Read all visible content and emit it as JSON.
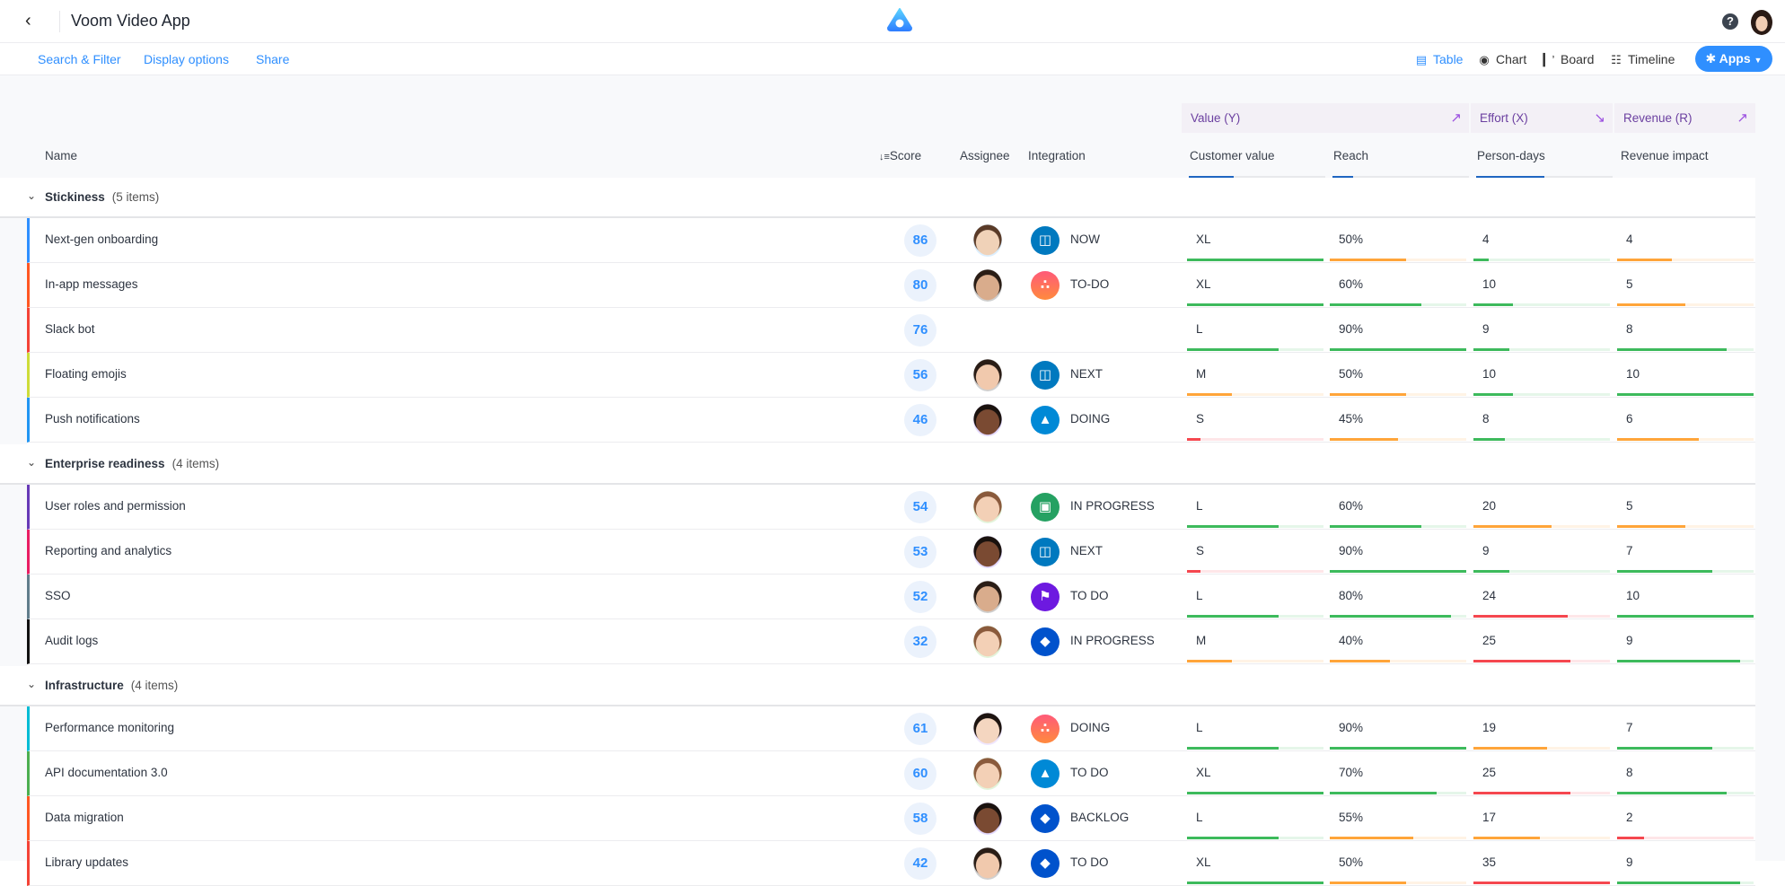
{
  "app": {
    "title": "Voom Video App",
    "back_icon": "chevron-left-icon",
    "logo_icon": "app-logo-icon",
    "help_icon": "help-icon",
    "user_avatar": "user-avatar"
  },
  "toolbar": {
    "links": [
      "Search & Filter",
      "Display options",
      "Share"
    ],
    "views": [
      {
        "label": "Table",
        "icon": "table-icon",
        "active": true
      },
      {
        "label": "Chart",
        "icon": "chart-icon"
      },
      {
        "label": "Board",
        "icon": "board-icon"
      },
      {
        "label": "Timeline",
        "icon": "timeline-icon"
      }
    ],
    "apps_label": "Apps",
    "accent": "#2f8fff"
  },
  "columns": {
    "name": "Name",
    "score": "Score",
    "assignee": "Assignee",
    "integration": "Integration",
    "groups": [
      {
        "label": "Value (Y)",
        "trend": "trending-up-icon"
      },
      {
        "label": "Effort (X)",
        "trend": "trending-down-icon"
      },
      {
        "label": "Revenue (R)",
        "trend": "trending-up-icon"
      }
    ],
    "metrics": [
      {
        "label": "Customer value",
        "weight": 0.33
      },
      {
        "label": "Reach",
        "weight": 0.15
      },
      {
        "label": "Person-days",
        "weight": 0.5
      },
      {
        "label": "Revenue impact"
      }
    ]
  },
  "colors": {
    "green": "#3dba5c",
    "orange": "#ffa53a",
    "red": "#f5474f"
  },
  "groups": [
    {
      "name": "Stickiness",
      "count": "(5 items)",
      "rows": [
        {
          "name": "Next-gen onboarding",
          "color": "#2f8fff",
          "score": "86",
          "assignee": "man-1",
          "integration": "trello",
          "status": "NOW",
          "m": [
            [
              "XL",
              1,
              "green"
            ],
            [
              "50%",
              0.56,
              "orange"
            ],
            [
              "4",
              0.11,
              "green"
            ],
            [
              "4",
              0.4,
              "orange"
            ]
          ]
        },
        {
          "name": "In-app messages",
          "color": "#ff5722",
          "score": "80",
          "assignee": "man-2",
          "integration": "asana",
          "status": "TO-DO",
          "m": [
            [
              "XL",
              1,
              "green"
            ],
            [
              "60%",
              0.67,
              "green"
            ],
            [
              "10",
              0.29,
              "green"
            ],
            [
              "5",
              0.5,
              "orange"
            ]
          ]
        },
        {
          "name": "Slack bot",
          "color": "#f44336",
          "score": "76",
          "assignee": null,
          "integration": null,
          "status": "",
          "m": [
            [
              "L",
              0.67,
              "green"
            ],
            [
              "90%",
              1,
              "green"
            ],
            [
              "9",
              0.26,
              "green"
            ],
            [
              "8",
              0.8,
              "green"
            ]
          ]
        },
        {
          "name": "Floating emojis",
          "color": "#cddc39",
          "score": "56",
          "assignee": "man-3",
          "integration": "trello",
          "status": "NEXT",
          "m": [
            [
              "M",
              0.33,
              "orange"
            ],
            [
              "50%",
              0.56,
              "orange"
            ],
            [
              "10",
              0.29,
              "green"
            ],
            [
              "10",
              1,
              "green"
            ]
          ]
        },
        {
          "name": "Push notifications",
          "color": "#2196f3",
          "score": "46",
          "assignee": "woman-1",
          "integration": "azure",
          "status": "DOING",
          "m": [
            [
              "S",
              0.1,
              "red"
            ],
            [
              "45%",
              0.5,
              "orange"
            ],
            [
              "8",
              0.23,
              "green"
            ],
            [
              "6",
              0.6,
              "orange"
            ]
          ]
        }
      ]
    },
    {
      "name": "Enterprise readiness",
      "count": "(4 items)",
      "rows": [
        {
          "name": "User roles and permission",
          "color": "#673ab7",
          "score": "54",
          "assignee": "woman-2",
          "integration": "pivotal",
          "status": "IN PROGRESS",
          "m": [
            [
              "L",
              0.67,
              "green"
            ],
            [
              "60%",
              0.67,
              "green"
            ],
            [
              "20",
              0.57,
              "orange"
            ],
            [
              "5",
              0.5,
              "orange"
            ]
          ]
        },
        {
          "name": "Reporting and analytics",
          "color": "#e91e63",
          "score": "53",
          "assignee": "woman-1",
          "integration": "trello",
          "status": "NEXT",
          "m": [
            [
              "S",
              0.1,
              "red"
            ],
            [
              "90%",
              1,
              "green"
            ],
            [
              "9",
              0.26,
              "green"
            ],
            [
              "7",
              0.7,
              "green"
            ]
          ]
        },
        {
          "name": "SSO",
          "color": "#607d8b",
          "score": "52",
          "assignee": "man-2",
          "integration": "flag",
          "status": "TO DO",
          "m": [
            [
              "L",
              0.67,
              "green"
            ],
            [
              "80%",
              0.89,
              "green"
            ],
            [
              "24",
              0.69,
              "red"
            ],
            [
              "10",
              1,
              "green"
            ]
          ]
        },
        {
          "name": "Audit logs",
          "color": "#111111",
          "score": "32",
          "assignee": "woman-2",
          "integration": "jira",
          "status": "IN PROGRESS",
          "m": [
            [
              "M",
              0.33,
              "orange"
            ],
            [
              "40%",
              0.44,
              "orange"
            ],
            [
              "25",
              0.71,
              "red"
            ],
            [
              "9",
              0.9,
              "green"
            ]
          ]
        }
      ]
    },
    {
      "name": "Infrastructure",
      "count": "(4 items)",
      "rows": [
        {
          "name": "Performance monitoring",
          "color": "#00bcd4",
          "score": "61",
          "assignee": "woman-3",
          "integration": "asana",
          "status": "DOING",
          "m": [
            [
              "L",
              0.67,
              "green"
            ],
            [
              "90%",
              1,
              "green"
            ],
            [
              "19",
              0.54,
              "orange"
            ],
            [
              "7",
              0.7,
              "green"
            ]
          ]
        },
        {
          "name": "API documentation 3.0",
          "color": "#4caf50",
          "score": "60",
          "assignee": "woman-2",
          "integration": "azure",
          "status": "TO DO",
          "m": [
            [
              "XL",
              1,
              "green"
            ],
            [
              "70%",
              0.78,
              "green"
            ],
            [
              "25",
              0.71,
              "red"
            ],
            [
              "8",
              0.8,
              "green"
            ]
          ]
        },
        {
          "name": "Data migration",
          "color": "#ff5722",
          "score": "58",
          "assignee": "woman-1",
          "integration": "jira",
          "status": "BACKLOG",
          "m": [
            [
              "L",
              0.67,
              "green"
            ],
            [
              "55%",
              0.61,
              "orange"
            ],
            [
              "17",
              0.49,
              "orange"
            ],
            [
              "2",
              0.2,
              "red"
            ]
          ]
        },
        {
          "name": "Library updates",
          "color": "#f44336",
          "score": "42",
          "assignee": "man-3",
          "integration": "jira",
          "status": "TO DO",
          "m": [
            [
              "XL",
              1,
              "green"
            ],
            [
              "50%",
              0.56,
              "orange"
            ],
            [
              "35",
              1,
              "red"
            ],
            [
              "9",
              0.9,
              "green"
            ]
          ]
        }
      ]
    }
  ]
}
